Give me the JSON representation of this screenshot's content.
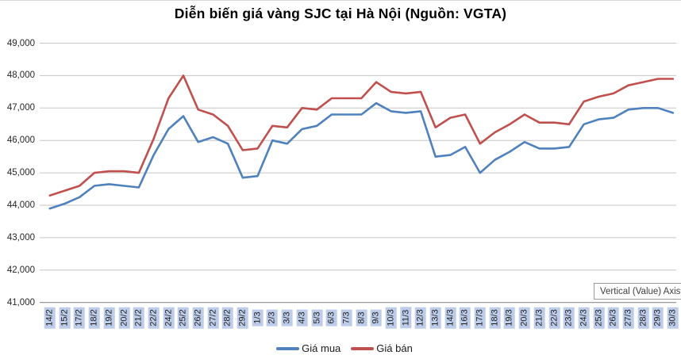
{
  "title": "Diễn biến giá vàng SJC tại Hà Nội (Nguồn: VGTA)",
  "tooltip": {
    "text": "Vertical (Value) Axis Major Gridlines"
  },
  "colors": {
    "buy_line": "#4F81BD",
    "sell_line": "#C0504D",
    "gridline": "#c6c6c6",
    "axis_line": "#8c8c8c",
    "x_label_bg": "#bccce9"
  },
  "chart_data": {
    "type": "line",
    "title": "Diễn biến giá vàng SJC tại Hà Nội (Nguồn: VGTA)",
    "xlabel": "",
    "ylabel": "",
    "ylim": [
      41000,
      49000
    ],
    "grid": true,
    "legend_position": "bottom",
    "y_ticks": [
      "49,000",
      "48,000",
      "47,000",
      "46,000",
      "45,000",
      "44,000",
      "43,000",
      "42,000",
      "41,000"
    ],
    "categories": [
      "14/2",
      "15/2",
      "17/2",
      "18/2",
      "19/2",
      "20/2",
      "21/2",
      "22/2",
      "24/2",
      "25/2",
      "26/2",
      "27/2",
      "28/2",
      "29/2",
      "1/3",
      "2/3",
      "3/3",
      "4/3",
      "5/3",
      "6/3",
      "7/3",
      "8/3",
      "9/3",
      "10/3",
      "11/3",
      "12/3",
      "13/3",
      "14/3",
      "16/3",
      "17/3",
      "18/3",
      "19/3",
      "20/3",
      "21/3",
      "22/3",
      "23/3",
      "24/3",
      "25/3",
      "26/3",
      "27/3",
      "28/3",
      "29/3",
      "30/3"
    ],
    "series": [
      {
        "name": "Giá mua",
        "color": "#4F81BD",
        "values": [
          43900,
          44050,
          44250,
          44600,
          44650,
          44600,
          44550,
          45550,
          46350,
          46750,
          45950,
          46100,
          45900,
          44850,
          44900,
          46000,
          45900,
          46350,
          46450,
          46800,
          46800,
          46800,
          47150,
          46900,
          46850,
          46900,
          45500,
          45550,
          45800,
          45000,
          45400,
          45650,
          45950,
          45750,
          45750,
          45800,
          46500,
          46650,
          46700,
          46950,
          47000,
          47000,
          46850
        ]
      },
      {
        "name": "Giá bán",
        "color": "#C0504D",
        "values": [
          44300,
          44450,
          44600,
          45000,
          45050,
          45050,
          45000,
          46050,
          47300,
          48000,
          46950,
          46800,
          46450,
          45700,
          45750,
          46450,
          46400,
          47000,
          46950,
          47300,
          47300,
          47300,
          47800,
          47500,
          47450,
          47500,
          46400,
          46700,
          46800,
          45900,
          46250,
          46500,
          46800,
          46550,
          46550,
          46500,
          47200,
          47350,
          47450,
          47700,
          47800,
          47900,
          47900
        ]
      }
    ]
  }
}
